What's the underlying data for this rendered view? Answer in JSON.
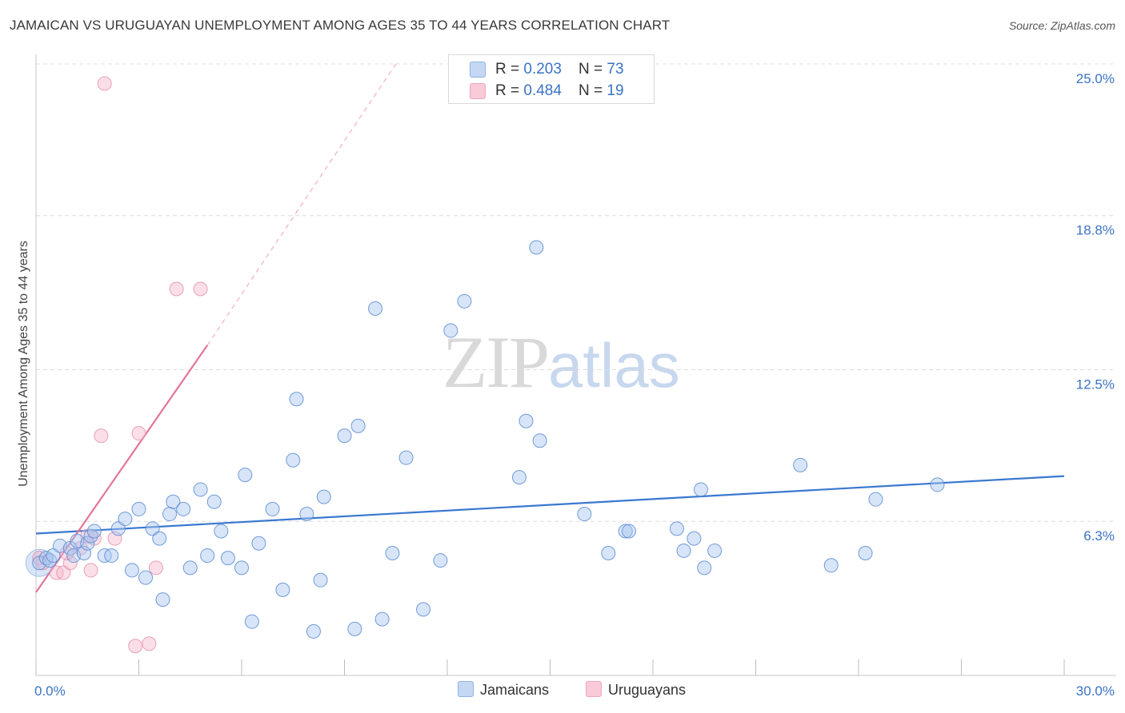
{
  "header": {
    "title": "JAMAICAN VS URUGUAYAN UNEMPLOYMENT AMONG AGES 35 TO 44 YEARS CORRELATION CHART",
    "source": "Source: ZipAtlas.com"
  },
  "watermark": {
    "zip": "ZIP",
    "atlas": "atlas"
  },
  "legend": {
    "rows": [
      {
        "r_label": "R = ",
        "r_value": "0.203",
        "n_label": "N = ",
        "n_value": "73",
        "color": "#a9c6ef"
      },
      {
        "r_label": "R = ",
        "r_value": "0.484",
        "n_label": "N = ",
        "n_value": "19",
        "color": "#f7b8cb"
      }
    ],
    "bottom": [
      "Jamaicans",
      "Uruguayans"
    ]
  },
  "colors": {
    "blue": "#4a86d4",
    "blue_fill": "#a9c6ef",
    "pink": "#e2749b",
    "pink_fill": "#f7b8cb",
    "tick": "#3a73c4"
  },
  "chart_data": {
    "type": "scatter",
    "title": "JAMAICAN VS URUGUAYAN UNEMPLOYMENT AMONG AGES 35 TO 44 YEARS CORRELATION CHART",
    "xlabel": "",
    "ylabel": "Unemployment Among Ages 35 to 44 years",
    "xlim": [
      0,
      30
    ],
    "ylim": [
      0,
      25
    ],
    "x_tick_labels": [
      "0.0%",
      "30.0%"
    ],
    "y_ticks": [
      6.3,
      12.5,
      18.8,
      25.0
    ],
    "y_tick_labels": [
      "6.3%",
      "12.5%",
      "18.8%",
      "25.0%"
    ],
    "grid": true,
    "series": [
      {
        "name": "Jamaicans",
        "points": [
          [
            0.1,
            4.6
          ],
          [
            0.3,
            4.8
          ],
          [
            0.4,
            4.7
          ],
          [
            0.5,
            4.9
          ],
          [
            0.7,
            5.3
          ],
          [
            1.0,
            5.2
          ],
          [
            1.1,
            4.9
          ],
          [
            1.2,
            5.5
          ],
          [
            1.4,
            5.0
          ],
          [
            1.5,
            5.4
          ],
          [
            1.6,
            5.7
          ],
          [
            1.7,
            5.9
          ],
          [
            2.0,
            4.9
          ],
          [
            2.2,
            4.9
          ],
          [
            2.4,
            6.0
          ],
          [
            2.6,
            6.4
          ],
          [
            2.8,
            4.3
          ],
          [
            3.0,
            6.8
          ],
          [
            3.2,
            4.0
          ],
          [
            3.4,
            6.0
          ],
          [
            3.6,
            5.6
          ],
          [
            3.7,
            3.1
          ],
          [
            3.9,
            6.6
          ],
          [
            4.0,
            7.1
          ],
          [
            4.3,
            6.8
          ],
          [
            4.5,
            4.4
          ],
          [
            4.8,
            7.6
          ],
          [
            5.0,
            4.9
          ],
          [
            5.2,
            7.1
          ],
          [
            5.4,
            5.9
          ],
          [
            5.6,
            4.8
          ],
          [
            6.0,
            4.4
          ],
          [
            6.1,
            8.2
          ],
          [
            6.3,
            2.2
          ],
          [
            6.5,
            5.4
          ],
          [
            6.9,
            6.8
          ],
          [
            7.2,
            3.5
          ],
          [
            7.5,
            8.8
          ],
          [
            7.6,
            11.3
          ],
          [
            7.9,
            6.6
          ],
          [
            8.1,
            1.8
          ],
          [
            8.3,
            3.9
          ],
          [
            8.4,
            7.3
          ],
          [
            9.0,
            9.8
          ],
          [
            9.3,
            1.9
          ],
          [
            9.4,
            10.2
          ],
          [
            9.9,
            15.0
          ],
          [
            10.1,
            2.3
          ],
          [
            10.4,
            5.0
          ],
          [
            10.8,
            8.9
          ],
          [
            11.3,
            2.7
          ],
          [
            11.8,
            4.7
          ],
          [
            12.1,
            14.1
          ],
          [
            12.5,
            15.3
          ],
          [
            14.1,
            8.1
          ],
          [
            14.3,
            10.4
          ],
          [
            14.6,
            17.5
          ],
          [
            14.7,
            9.6
          ],
          [
            16.0,
            6.6
          ],
          [
            16.7,
            5.0
          ],
          [
            17.2,
            5.9
          ],
          [
            17.3,
            5.9
          ],
          [
            18.7,
            6.0
          ],
          [
            18.9,
            5.1
          ],
          [
            19.2,
            5.6
          ],
          [
            19.4,
            7.6
          ],
          [
            19.5,
            4.4
          ],
          [
            19.8,
            5.1
          ],
          [
            22.3,
            8.6
          ],
          [
            23.2,
            4.5
          ],
          [
            24.2,
            5.0
          ],
          [
            24.5,
            7.2
          ],
          [
            26.3,
            7.8
          ]
        ]
      },
      {
        "name": "Uruguayans",
        "points": [
          [
            0.1,
            4.8
          ],
          [
            0.2,
            4.6
          ],
          [
            0.6,
            4.2
          ],
          [
            0.8,
            4.2
          ],
          [
            1.0,
            4.6
          ],
          [
            1.3,
            5.2
          ],
          [
            1.5,
            5.7
          ],
          [
            1.6,
            4.3
          ],
          [
            1.7,
            5.6
          ],
          [
            1.9,
            9.8
          ],
          [
            2.0,
            24.2
          ],
          [
            2.3,
            5.6
          ],
          [
            2.9,
            1.2
          ],
          [
            3.0,
            9.9
          ],
          [
            3.3,
            1.3
          ],
          [
            3.5,
            4.4
          ],
          [
            4.1,
            15.8
          ],
          [
            4.8,
            15.8
          ],
          [
            0.9,
            5.0
          ]
        ]
      }
    ],
    "trendlines": [
      {
        "series": "Jamaicans",
        "x": [
          0,
          30
        ],
        "y": [
          5.8,
          8.15
        ]
      },
      {
        "series": "Uruguayans",
        "solid": {
          "x": [
            0,
            5.0
          ],
          "y": [
            3.4,
            13.5
          ]
        },
        "dashed": {
          "x": [
            5.0,
            10.5
          ],
          "y": [
            13.5,
            25.0
          ]
        }
      }
    ]
  }
}
